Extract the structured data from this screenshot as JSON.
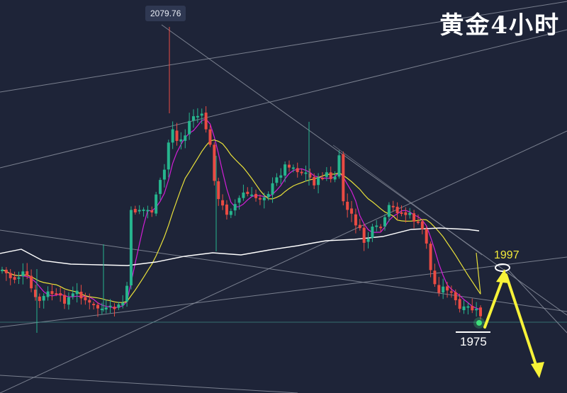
{
  "title": "黄金4小时",
  "chart_data": {
    "type": "candlestick",
    "title": "黄金4小时",
    "annotations": {
      "high_label": "2079.76",
      "target_label": "1997",
      "support_label": "1975"
    },
    "price_axis": {
      "min": 1955,
      "max": 2090
    },
    "series": [
      {
        "name": "",
        "color": "#ffffff"
      },
      {
        "name": "",
        "color": "#e8e03a"
      },
      {
        "name": "",
        "color": "#d21fd6"
      }
    ],
    "candle_count": 116,
    "colors": {
      "up": "#26b58e",
      "down": "#ea4b43",
      "ma_slow": "#ffffff",
      "ma_mid": "#e8e03a",
      "ma_fast": "#d21fd6",
      "trendline": "#8a8f9e",
      "arrow": "#f7f238"
    }
  }
}
